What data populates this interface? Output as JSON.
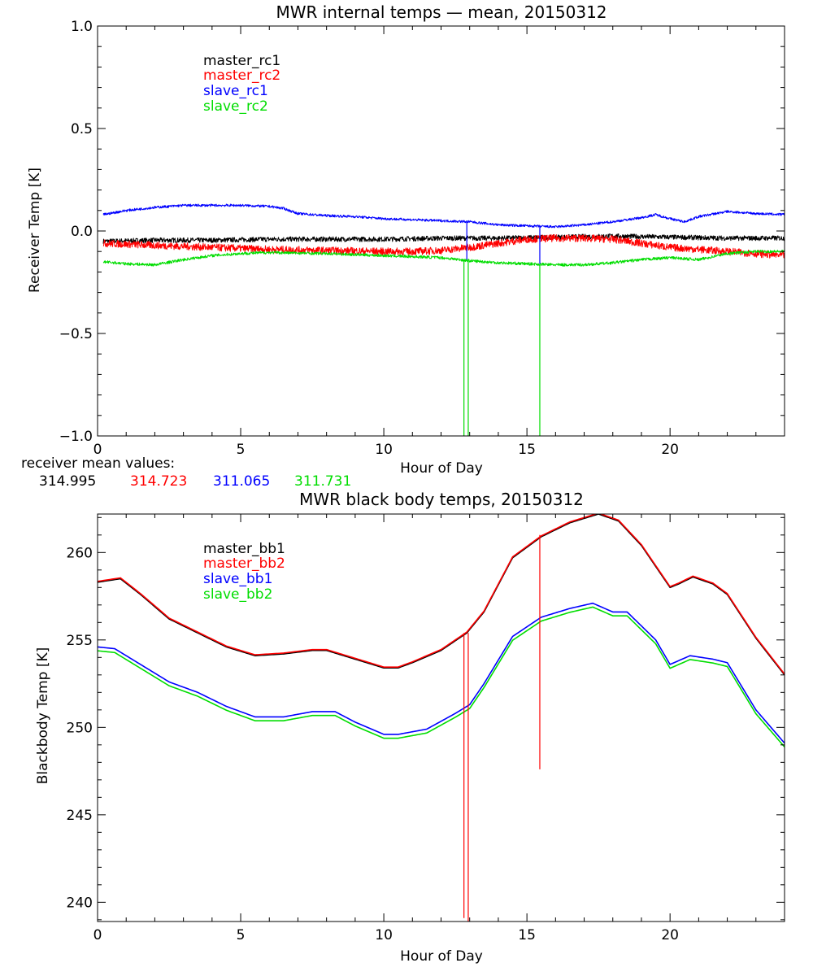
{
  "chart_data": [
    {
      "type": "line",
      "title": "MWR internal temps — mean, 20150312",
      "xlabel": "Hour of Day",
      "ylabel": "Receiver Temp [K]",
      "xlim": [
        0,
        24
      ],
      "ylim": [
        -1.0,
        1.0
      ],
      "xticks": [
        0,
        5,
        10,
        15,
        20
      ],
      "xtick_labels": [
        "0",
        "5",
        "10",
        "15",
        "20"
      ],
      "yticks": [
        -1.0,
        -0.5,
        0.0,
        0.5,
        1.0
      ],
      "ytick_labels": [
        "−1.0",
        "−0.5",
        "0.0",
        "0.5",
        "1.0"
      ],
      "legend_position": "top-left",
      "series": [
        {
          "name": "master_rc1",
          "color": "#000000",
          "noise": 0.012,
          "x": [
            0.2,
            2,
            4,
            6,
            8,
            10,
            12,
            14,
            16,
            18,
            20,
            22,
            24
          ],
          "values": [
            -0.05,
            -0.045,
            -0.045,
            -0.04,
            -0.04,
            -0.04,
            -0.035,
            -0.035,
            -0.03,
            -0.025,
            -0.03,
            -0.035,
            -0.035
          ]
        },
        {
          "name": "master_rc2",
          "color": "#ff0000",
          "noise": 0.018,
          "x": [
            0.2,
            2,
            4,
            6,
            8,
            10,
            11,
            12,
            13,
            14,
            15,
            16,
            17,
            18,
            19,
            20,
            21,
            22,
            23,
            24
          ],
          "values": [
            -0.06,
            -0.07,
            -0.08,
            -0.09,
            -0.095,
            -0.1,
            -0.1,
            -0.095,
            -0.08,
            -0.06,
            -0.04,
            -0.035,
            -0.035,
            -0.04,
            -0.06,
            -0.08,
            -0.09,
            -0.1,
            -0.11,
            -0.12
          ]
        },
        {
          "name": "slave_rc1",
          "color": "#0000ff",
          "noise": 0.006,
          "x": [
            0.2,
            1,
            2,
            3,
            4,
            5,
            6,
            6.5,
            7,
            8,
            9,
            10,
            11,
            12,
            13,
            14,
            15,
            16,
            17,
            18,
            19,
            19.5,
            20,
            20.5,
            21,
            22,
            23,
            24
          ],
          "values": [
            0.08,
            0.1,
            0.115,
            0.125,
            0.125,
            0.125,
            0.12,
            0.11,
            0.085,
            0.075,
            0.07,
            0.06,
            0.055,
            0.05,
            0.045,
            0.03,
            0.025,
            0.02,
            0.03,
            0.045,
            0.065,
            0.08,
            0.06,
            0.045,
            0.07,
            0.095,
            0.085,
            0.08
          ]
        },
        {
          "name": "slave_rc2",
          "color": "#00dd00",
          "noise": 0.007,
          "x": [
            0.2,
            1,
            2,
            3,
            4,
            5,
            6,
            8,
            10,
            12,
            13,
            14,
            15,
            16,
            17,
            18,
            19,
            20,
            21,
            22,
            23,
            24
          ],
          "values": [
            -0.15,
            -0.16,
            -0.165,
            -0.14,
            -0.12,
            -0.11,
            -0.105,
            -0.11,
            -0.12,
            -0.13,
            -0.145,
            -0.155,
            -0.16,
            -0.165,
            -0.165,
            -0.155,
            -0.14,
            -0.13,
            -0.14,
            -0.11,
            -0.1,
            -0.1
          ]
        }
      ],
      "spikes": [
        {
          "x": 12.8,
          "from": -0.14,
          "to": -1.0,
          "color": "#00dd00"
        },
        {
          "x": 12.95,
          "from": -0.14,
          "to": -1.0,
          "color": "#00dd00"
        },
        {
          "x": 15.45,
          "from": -0.16,
          "to": -1.0,
          "color": "#00dd00"
        },
        {
          "x": 12.9,
          "from": 0.05,
          "to": -0.14,
          "color": "#0000ff"
        },
        {
          "x": 15.45,
          "from": 0.02,
          "to": -0.16,
          "color": "#0000ff"
        }
      ]
    },
    {
      "type": "line",
      "title": "MWR black body temps, 20150312",
      "xlabel": "Hour of Day",
      "ylabel": "Blackbody Temp [K]",
      "xlim": [
        0,
        24
      ],
      "ylim": [
        238.9,
        262.2
      ],
      "xticks": [
        0,
        5,
        10,
        15,
        20
      ],
      "xtick_labels": [
        "0",
        "5",
        "10",
        "15",
        "20"
      ],
      "yticks": [
        240,
        245,
        250,
        255,
        260
      ],
      "ytick_labels": [
        "240",
        "245",
        "250",
        "255",
        "260"
      ],
      "legend_position": "top-left",
      "series": [
        {
          "name": "master_bb1",
          "color": "#000000",
          "offset": 0,
          "x": [
            0,
            0.8,
            1.5,
            2.5,
            3.5,
            4.5,
            5.5,
            6.5,
            7.5,
            8,
            9,
            10,
            10.5,
            11,
            12,
            12.9,
            13.5,
            14.5,
            15.5,
            16.5,
            17.5,
            18.2,
            19,
            19.5,
            20,
            20.3,
            20.8,
            21.5,
            22,
            23,
            24
          ],
          "values": [
            258.3,
            258.5,
            257.6,
            256.2,
            255.4,
            254.6,
            254.1,
            254.2,
            254.4,
            254.4,
            253.9,
            253.4,
            253.4,
            253.7,
            254.4,
            255.4,
            256.6,
            259.7,
            260.9,
            261.7,
            262.2,
            261.8,
            260.4,
            259.2,
            258.0,
            258.2,
            258.6,
            258.2,
            257.6,
            255.1,
            253.0
          ]
        },
        {
          "name": "master_bb2",
          "color": "#ff0000",
          "offset": 0.05,
          "x": [
            0,
            0.8,
            1.5,
            2.5,
            3.5,
            4.5,
            5.5,
            6.5,
            7.5,
            8,
            9,
            10,
            10.5,
            11,
            12,
            12.9,
            13.5,
            14.5,
            15.5,
            16.5,
            17.5,
            18.2,
            19,
            19.5,
            20,
            20.3,
            20.8,
            21.5,
            22,
            23,
            24
          ],
          "values": [
            258.3,
            258.5,
            257.6,
            256.2,
            255.4,
            254.6,
            254.1,
            254.2,
            254.4,
            254.4,
            253.9,
            253.4,
            253.4,
            253.7,
            254.4,
            255.4,
            256.6,
            259.7,
            260.9,
            261.7,
            262.2,
            261.8,
            260.4,
            259.2,
            258.0,
            258.2,
            258.6,
            258.2,
            257.6,
            255.1,
            253.0
          ]
        },
        {
          "name": "slave_bb1",
          "color": "#0000ff",
          "offset": 0,
          "x": [
            0,
            0.6,
            1.5,
            2.5,
            3.5,
            4.5,
            5.5,
            6.5,
            7.5,
            8.3,
            9,
            10,
            10.5,
            11.5,
            12.5,
            13,
            13.5,
            14.5,
            15.5,
            16.5,
            17.3,
            18,
            18.5,
            19.5,
            20,
            20.7,
            21.5,
            22,
            23,
            24
          ],
          "values": [
            254.6,
            254.5,
            253.6,
            252.6,
            252.0,
            251.2,
            250.6,
            250.6,
            250.9,
            250.9,
            250.3,
            249.6,
            249.6,
            249.9,
            250.8,
            251.3,
            252.5,
            255.2,
            256.3,
            256.8,
            257.1,
            256.6,
            256.6,
            255.0,
            253.6,
            254.1,
            253.9,
            253.7,
            251.0,
            249.1
          ]
        },
        {
          "name": "slave_bb2",
          "color": "#00dd00",
          "offset": -0.22,
          "x": [
            0,
            0.6,
            1.5,
            2.5,
            3.5,
            4.5,
            5.5,
            6.5,
            7.5,
            8.3,
            9,
            10,
            10.5,
            11.5,
            12.5,
            13,
            13.5,
            14.5,
            15.5,
            16.5,
            17.3,
            18,
            18.5,
            19.5,
            20,
            20.7,
            21.5,
            22,
            23,
            24
          ],
          "values": [
            254.6,
            254.5,
            253.6,
            252.6,
            252.0,
            251.2,
            250.6,
            250.6,
            250.9,
            250.9,
            250.3,
            249.6,
            249.6,
            249.9,
            250.8,
            251.3,
            252.5,
            255.2,
            256.3,
            256.8,
            257.1,
            256.6,
            256.6,
            255.0,
            253.6,
            254.1,
            253.9,
            253.7,
            251.0,
            249.1
          ]
        }
      ],
      "spikes": [
        {
          "x": 12.8,
          "from": 255.4,
          "to": 239.1,
          "color": "#ff0000"
        },
        {
          "x": 12.95,
          "from": 255.4,
          "to": 238.9,
          "color": "#ff0000"
        },
        {
          "x": 15.45,
          "from": 261.0,
          "to": 247.6,
          "color": "#ff0000"
        }
      ]
    }
  ],
  "receiver_means": {
    "label": "receiver mean values:",
    "values": [
      {
        "text": "314.995",
        "color": "#000000"
      },
      {
        "text": "314.723",
        "color": "#ff0000"
      },
      {
        "text": "311.065",
        "color": "#0000ff"
      },
      {
        "text": "311.731",
        "color": "#00dd00"
      }
    ]
  }
}
